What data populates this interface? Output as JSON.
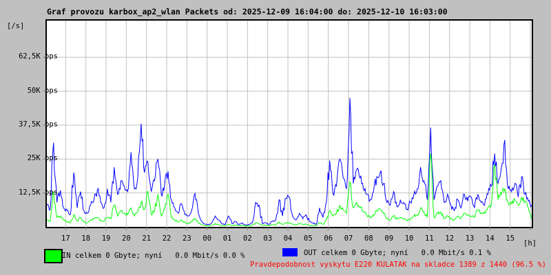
{
  "title": "Graf provozu karbox_ap2_wlan Packets od: 2025-12-09 16:04:00 do: 2025-12-10 16:03:00",
  "y_unit_label": "[/s]",
  "x_unit_label": "[h]",
  "colors": {
    "in": "#00ff00",
    "out": "#0000ff",
    "background": "#c0c0c0",
    "plot_background": "#ffffff",
    "grid": "#c0c0c0",
    "tick": "#808080",
    "border": "#000000",
    "alert_text": "#ff0000"
  },
  "legend": {
    "in_label": "IN celkem 0 Gbyte; nyní   0.0 Mbit/s 0.0 %",
    "out_label": "OUT celkem 0 Gbyte; nyní   0.0 Mbit/s 0.1 %"
  },
  "alert_text": "Pravdepodobnost vyskytu E220 KULATAK na skladce 1389 z 1440 (96.5 %)",
  "chart_data": {
    "type": "line",
    "title": "Graf provozu karbox_ap2_wlan Packets",
    "time_start": "2025-12-09 16:04:00",
    "time_end": "2025-12-10 16:03:00",
    "sample_interval_minutes": 10,
    "ylim": [
      0,
      76000
    ],
    "y_unit": "pps",
    "grid": true,
    "y_ticks": [
      {
        "value": 12500,
        "label": "12,5K pps"
      },
      {
        "value": 25000,
        "label": "25K pps"
      },
      {
        "value": 37500,
        "label": "37,5K pps"
      },
      {
        "value": 50000,
        "label": "50K pps"
      },
      {
        "value": 62500,
        "label": "62,5K pps"
      }
    ],
    "x_tick_labels": [
      "17",
      "18",
      "19",
      "20",
      "21",
      "22",
      "23",
      "00",
      "01",
      "02",
      "03",
      "04",
      "05",
      "06",
      "07",
      "08",
      "09",
      "10",
      "11",
      "12",
      "13",
      "14",
      "15"
    ],
    "series": [
      {
        "name": "OUT",
        "color": "#0000ff",
        "values": [
          8000,
          6500,
          31000,
          9000,
          13500,
          7000,
          6000,
          4500,
          20000,
          7000,
          13000,
          6000,
          5000,
          8000,
          10000,
          13500,
          9000,
          7000,
          14000,
          9000,
          22000,
          12000,
          17000,
          15000,
          13000,
          27500,
          14000,
          18000,
          38000,
          20000,
          24000,
          13000,
          17000,
          25000,
          12000,
          16000,
          20500,
          10000,
          7000,
          5000,
          8500,
          4500,
          4000,
          6000,
          12300,
          5000,
          2000,
          1000,
          800,
          1500,
          4000,
          2500,
          1200,
          900,
          4000,
          1200,
          2000,
          800,
          1500,
          700,
          900,
          1500,
          9000,
          8000,
          1200,
          1500,
          1000,
          2000,
          2500,
          10000,
          4000,
          10500,
          11000,
          4000,
          2500,
          5000,
          3000,
          4500,
          2000,
          1500,
          1000,
          7000,
          3500,
          9000,
          24500,
          12000,
          15000,
          25000,
          18000,
          14000,
          47500,
          16000,
          21000,
          18000,
          14000,
          12000,
          10000,
          13000,
          18500,
          20000,
          16000,
          9000,
          8000,
          13000,
          7500,
          10000,
          9000,
          6500,
          9000,
          12000,
          14000,
          22000,
          17000,
          10000,
          36600,
          10000,
          15000,
          17000,
          9000,
          12000,
          8000,
          6000,
          10000,
          7000,
          12000,
          9500,
          11000,
          7000,
          12000,
          9000,
          8000,
          12000,
          15000,
          27000,
          16000,
          22000,
          32000,
          14000,
          13000,
          16000,
          11000,
          18500,
          12000,
          9500,
          8000
        ]
      },
      {
        "name": "IN",
        "color": "#00ff00",
        "values": [
          2500,
          2000,
          13000,
          3500,
          4000,
          2500,
          2000,
          1500,
          4500,
          2200,
          3500,
          1800,
          1500,
          2500,
          3000,
          3500,
          2500,
          2000,
          3500,
          3000,
          8000,
          4000,
          6000,
          5000,
          4500,
          7000,
          4000,
          5500,
          9000,
          6500,
          13000,
          4500,
          6000,
          12000,
          4000,
          6500,
          12000,
          3500,
          2500,
          1800,
          2500,
          1500,
          1200,
          2000,
          3000,
          1500,
          800,
          500,
          400,
          600,
          1200,
          800,
          500,
          400,
          1000,
          500,
          700,
          400,
          600,
          300,
          400,
          600,
          1500,
          1200,
          500,
          600,
          500,
          800,
          700,
          1800,
          900,
          1500,
          1500,
          1000,
          800,
          1200,
          900,
          1000,
          600,
          500,
          400,
          1500,
          900,
          2500,
          6000,
          4000,
          5000,
          8000,
          6500,
          5000,
          16500,
          7000,
          9000,
          7500,
          5500,
          4500,
          3500,
          4500,
          6000,
          6500,
          5000,
          3000,
          2500,
          4000,
          2800,
          3500,
          3000,
          2200,
          3000,
          4000,
          4500,
          7000,
          5500,
          3500,
          27000,
          3500,
          5000,
          5500,
          3000,
          4000,
          3000,
          2500,
          4000,
          3000,
          5000,
          4500,
          4000,
          3500,
          6000,
          5000,
          5500,
          7000,
          8000,
          23000,
          10000,
          12000,
          14000,
          9000,
          8500,
          10000,
          8000,
          11000,
          9500,
          7000,
          3000
        ]
      }
    ]
  }
}
